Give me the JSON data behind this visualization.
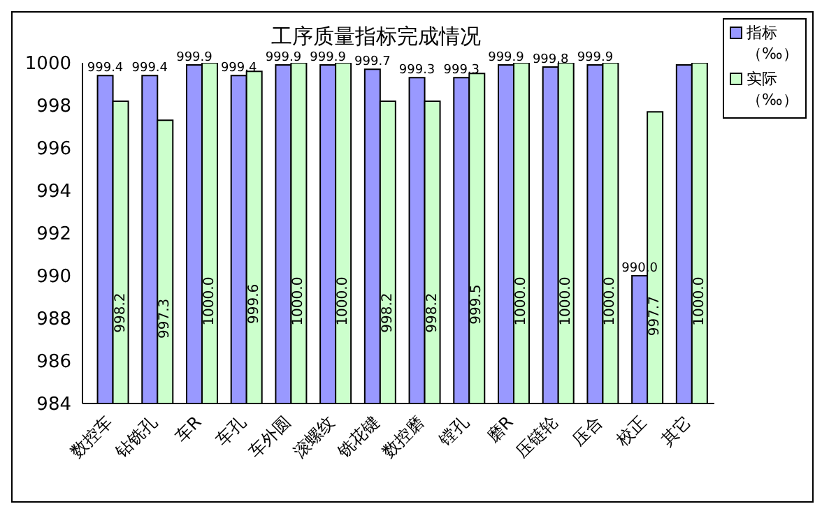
{
  "chart_data": {
    "type": "bar",
    "title": "工序质量指标完成情况",
    "categories": [
      "数控车",
      "钻铣孔",
      "车R",
      "车孔",
      "车外圆",
      "滚螺纹",
      "铣花键",
      "数控磨",
      "镗孔",
      "磨R",
      "压链轮",
      "压合",
      "校正",
      "其它"
    ],
    "series": [
      {
        "name": "指标（‰）",
        "color": "#9999ff",
        "values": [
          999.4,
          999.4,
          999.9,
          999.4,
          999.9,
          999.9,
          999.7,
          999.3,
          999.3,
          999.9,
          999.8,
          999.9,
          990.0,
          999.9
        ],
        "value_labels": [
          "999.4",
          "999.4",
          "999.9",
          "999.4",
          "999.9",
          "999.9",
          "999.7",
          "999.3",
          "999.3",
          "999.9",
          "999.8",
          "999.9",
          "990.0",
          null
        ]
      },
      {
        "name": "实际（‰）",
        "color": "#ccffcc",
        "values": [
          998.2,
          997.3,
          1000.0,
          999.6,
          1000.0,
          1000.0,
          998.2,
          998.2,
          999.5,
          1000.0,
          1000.0,
          1000.0,
          997.7,
          1000.0
        ],
        "value_labels": [
          "998.2",
          "997.3",
          "1000.0",
          "999.6",
          "1000.0",
          "1000.0",
          "998.2",
          "998.2",
          "999.5",
          "1000.0",
          "1000.0",
          "1000.0",
          "997.7",
          "1000.0"
        ]
      }
    ],
    "ylim": [
      984,
      1000
    ],
    "yticks": [
      984,
      986,
      988,
      990,
      992,
      994,
      996,
      998,
      1000
    ],
    "grid": false,
    "legend": "top right"
  }
}
